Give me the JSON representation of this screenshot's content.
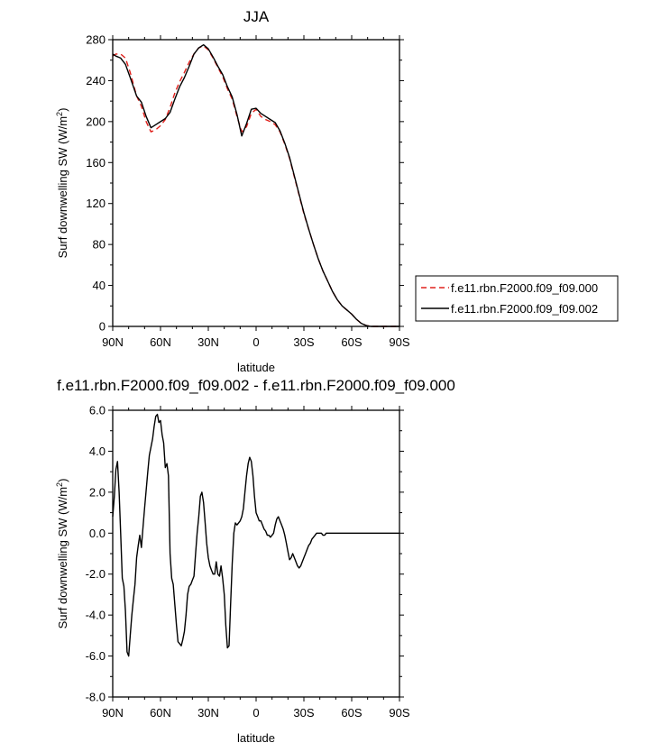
{
  "colors": {
    "series_000": "#e0201b",
    "series_002": "#000000",
    "background": "#ffffff"
  },
  "chart_data": [
    {
      "type": "line",
      "title": "JJA",
      "xlabel": "latitude",
      "ylabel": "Surf downwelling SW (W/m²)",
      "ylabel_main": "Surf downwelling SW (W/m",
      "ylabel_sup": "2",
      "ylabel_close": ")",
      "xlim": [
        90,
        -90
      ],
      "ylim": [
        0,
        280
      ],
      "xticks": [
        90,
        60,
        30,
        0,
        -30,
        -60,
        -90
      ],
      "xtick_labels": [
        "90N",
        "60N",
        "30N",
        "0",
        "30S",
        "60S",
        "90S"
      ],
      "yticks": [
        0,
        40,
        80,
        120,
        160,
        200,
        240,
        280
      ],
      "ytick_labels": [
        "0",
        "40",
        "80",
        "120",
        "160",
        "200",
        "240",
        "280"
      ],
      "legend": "right",
      "series": [
        {
          "name": "f.e11.rbn.F2000.f09_f09.000",
          "style": "dashed",
          "color": "#e0201b",
          "x": [
            90,
            88,
            85,
            82,
            79,
            75,
            72,
            69,
            66,
            63,
            60,
            57,
            54,
            51,
            48,
            45,
            42,
            39,
            36,
            33,
            30,
            27,
            24,
            21,
            18,
            15,
            12,
            9,
            6,
            3,
            0,
            -3,
            -6,
            -9,
            -12,
            -15,
            -18,
            -21,
            -24,
            -27,
            -30,
            -33,
            -36,
            -39,
            -42,
            -45,
            -48,
            -51,
            -54,
            -57,
            -60,
            -63,
            -66,
            -69,
            -72,
            -75,
            -78,
            -81,
            -84,
            -87,
            -90
          ],
          "y": [
            264,
            266,
            266,
            262,
            248,
            225,
            215,
            200,
            190,
            192,
            196,
            202,
            214,
            228,
            239,
            248,
            258,
            266,
            272,
            274,
            270,
            262,
            253,
            244,
            232,
            222,
            205,
            190,
            195,
            208,
            212,
            205,
            202,
            200,
            197,
            190,
            178,
            164,
            146,
            128,
            110,
            95,
            80,
            66,
            54,
            44,
            34,
            26,
            20,
            16,
            12,
            7,
            3,
            1,
            0,
            0,
            0,
            0,
            0,
            0,
            0
          ]
        },
        {
          "name": "f.e11.rbn.F2000.f09_f09.002",
          "style": "solid",
          "color": "#000000",
          "x": [
            90,
            88,
            85,
            82,
            79,
            75,
            72,
            69,
            66,
            63,
            60,
            57,
            54,
            51,
            48,
            45,
            42,
            39,
            36,
            33,
            30,
            27,
            24,
            21,
            18,
            15,
            12,
            9,
            6,
            3,
            0,
            -3,
            -6,
            -9,
            -12,
            -15,
            -18,
            -21,
            -24,
            -27,
            -30,
            -33,
            -36,
            -39,
            -42,
            -45,
            -48,
            -51,
            -54,
            -57,
            -60,
            -63,
            -66,
            -69,
            -72,
            -75,
            -78,
            -81,
            -84,
            -87,
            -90
          ],
          "y": [
            266,
            264,
            262,
            256,
            243,
            225,
            219,
            205,
            194,
            197,
            200,
            203,
            209,
            222,
            234,
            243,
            254,
            266,
            272,
            275,
            271,
            263,
            254,
            246,
            234,
            224,
            207,
            186,
            198,
            212,
            213,
            208,
            205,
            202,
            199,
            191,
            179,
            165,
            147,
            129,
            111,
            95,
            80,
            66,
            54,
            44,
            34,
            26,
            20,
            16,
            12,
            7,
            3,
            1,
            0,
            0,
            0,
            0,
            0,
            0,
            0
          ]
        }
      ]
    },
    {
      "type": "line",
      "title": "f.e11.rbn.F2000.f09_f09.002 - f.e11.rbn.F2000.f09_f09.000",
      "xlabel": "latitude",
      "ylabel": "Surf downwelling SW (W/m²)",
      "ylabel_main": "Surf downwelling SW (W/m",
      "ylabel_sup": "2",
      "ylabel_close": ")",
      "xlim": [
        90,
        -90
      ],
      "ylim": [
        -8.0,
        6.0
      ],
      "xticks": [
        90,
        60,
        30,
        0,
        -30,
        -60,
        -90
      ],
      "xtick_labels": [
        "90N",
        "60N",
        "30N",
        "0",
        "30S",
        "60S",
        "90S"
      ],
      "yticks": [
        -8,
        -6,
        -4,
        -2,
        0,
        2,
        4,
        6
      ],
      "ytick_labels": [
        "-8.0",
        "-6.0",
        "-4.0",
        "-2.0",
        "0.0",
        "2.0",
        "4.0",
        "6.0"
      ],
      "series": [
        {
          "color": "#000000",
          "x": [
            90,
            89,
            88,
            87,
            86,
            85,
            84,
            83,
            82,
            81,
            80,
            79,
            78,
            77,
            76,
            75,
            74,
            73,
            72,
            71,
            70,
            69,
            68,
            67,
            66,
            65,
            64,
            63,
            62,
            61,
            60,
            59,
            58,
            57,
            56,
            55,
            54,
            53,
            52,
            51,
            50,
            49,
            48,
            47,
            46,
            45,
            44,
            43,
            42,
            41,
            40,
            39,
            38,
            37,
            36,
            35,
            34,
            33,
            32,
            31,
            30,
            29,
            28,
            27,
            26,
            25,
            24,
            23,
            22,
            21,
            20,
            19,
            18,
            17,
            16,
            15,
            14,
            13,
            12,
            11,
            10,
            9,
            8,
            7,
            6,
            5,
            4,
            3,
            2,
            1,
            0,
            -1,
            -2,
            -3,
            -4,
            -5,
            -6,
            -7,
            -8,
            -9,
            -10,
            -11,
            -12,
            -13,
            -14,
            -15,
            -16,
            -17,
            -18,
            -19,
            -20,
            -21,
            -22,
            -23,
            -24,
            -25,
            -26,
            -27,
            -28,
            -29,
            -30,
            -31,
            -32,
            -33,
            -34,
            -35,
            -36,
            -37,
            -38,
            -39,
            -40,
            -41,
            -42,
            -43,
            -44,
            -45,
            -46,
            -47,
            -48,
            -49,
            -50,
            -51,
            -52,
            -53,
            -54,
            -55,
            -56,
            -57,
            -58,
            -59,
            -60,
            -62,
            -64,
            -66,
            -68,
            -70,
            -75,
            -80,
            -85,
            -90
          ],
          "y": [
            0.8,
            1.8,
            3.1,
            3.5,
            2.0,
            0.0,
            -2.2,
            -2.6,
            -3.8,
            -5.8,
            -6.0,
            -5.0,
            -4.0,
            -3.2,
            -2.5,
            -1.2,
            -0.6,
            -0.1,
            -0.7,
            0.3,
            1.2,
            2.1,
            3.0,
            3.8,
            4.2,
            4.6,
            5.2,
            5.7,
            5.8,
            5.4,
            5.5,
            4.8,
            4.4,
            3.2,
            3.4,
            2.8,
            -1.0,
            -2.2,
            -2.5,
            -3.5,
            -4.5,
            -5.3,
            -5.4,
            -5.5,
            -5.2,
            -4.8,
            -4.0,
            -3.0,
            -2.6,
            -2.5,
            -2.3,
            -2.1,
            -1.0,
            0.0,
            0.8,
            1.8,
            2.0,
            1.5,
            0.5,
            -0.5,
            -1.2,
            -1.6,
            -1.8,
            -2.0,
            -2.0,
            -1.4,
            -2.0,
            -2.1,
            -1.6,
            -2.2,
            -3.0,
            -4.5,
            -5.6,
            -5.5,
            -3.5,
            -1.5,
            0.0,
            0.5,
            0.4,
            0.5,
            0.6,
            0.8,
            1.2,
            2.0,
            2.8,
            3.4,
            3.7,
            3.5,
            2.8,
            1.8,
            1.0,
            0.8,
            0.6,
            0.6,
            0.4,
            0.2,
            0.1,
            -0.1,
            -0.1,
            -0.2,
            -0.1,
            0.0,
            0.4,
            0.7,
            0.8,
            0.6,
            0.4,
            0.2,
            -0.1,
            -0.5,
            -0.9,
            -1.3,
            -1.2,
            -1.0,
            -1.2,
            -1.4,
            -1.6,
            -1.7,
            -1.6,
            -1.4,
            -1.2,
            -1.0,
            -0.8,
            -0.6,
            -0.5,
            -0.3,
            -0.2,
            -0.1,
            0.0,
            0.0,
            0.0,
            0.0,
            -0.1,
            -0.1,
            0.0,
            0.0,
            0.0,
            0.0,
            0.0,
            0.0,
            0.0,
            0.0,
            0.0,
            0.0,
            0.0,
            0.0,
            0.0,
            0.0,
            0.0,
            0.0,
            0.0,
            0.0,
            0.0,
            0.0,
            0.0,
            0.0,
            0.0,
            0.0,
            0.0,
            0.0
          ]
        }
      ]
    }
  ]
}
